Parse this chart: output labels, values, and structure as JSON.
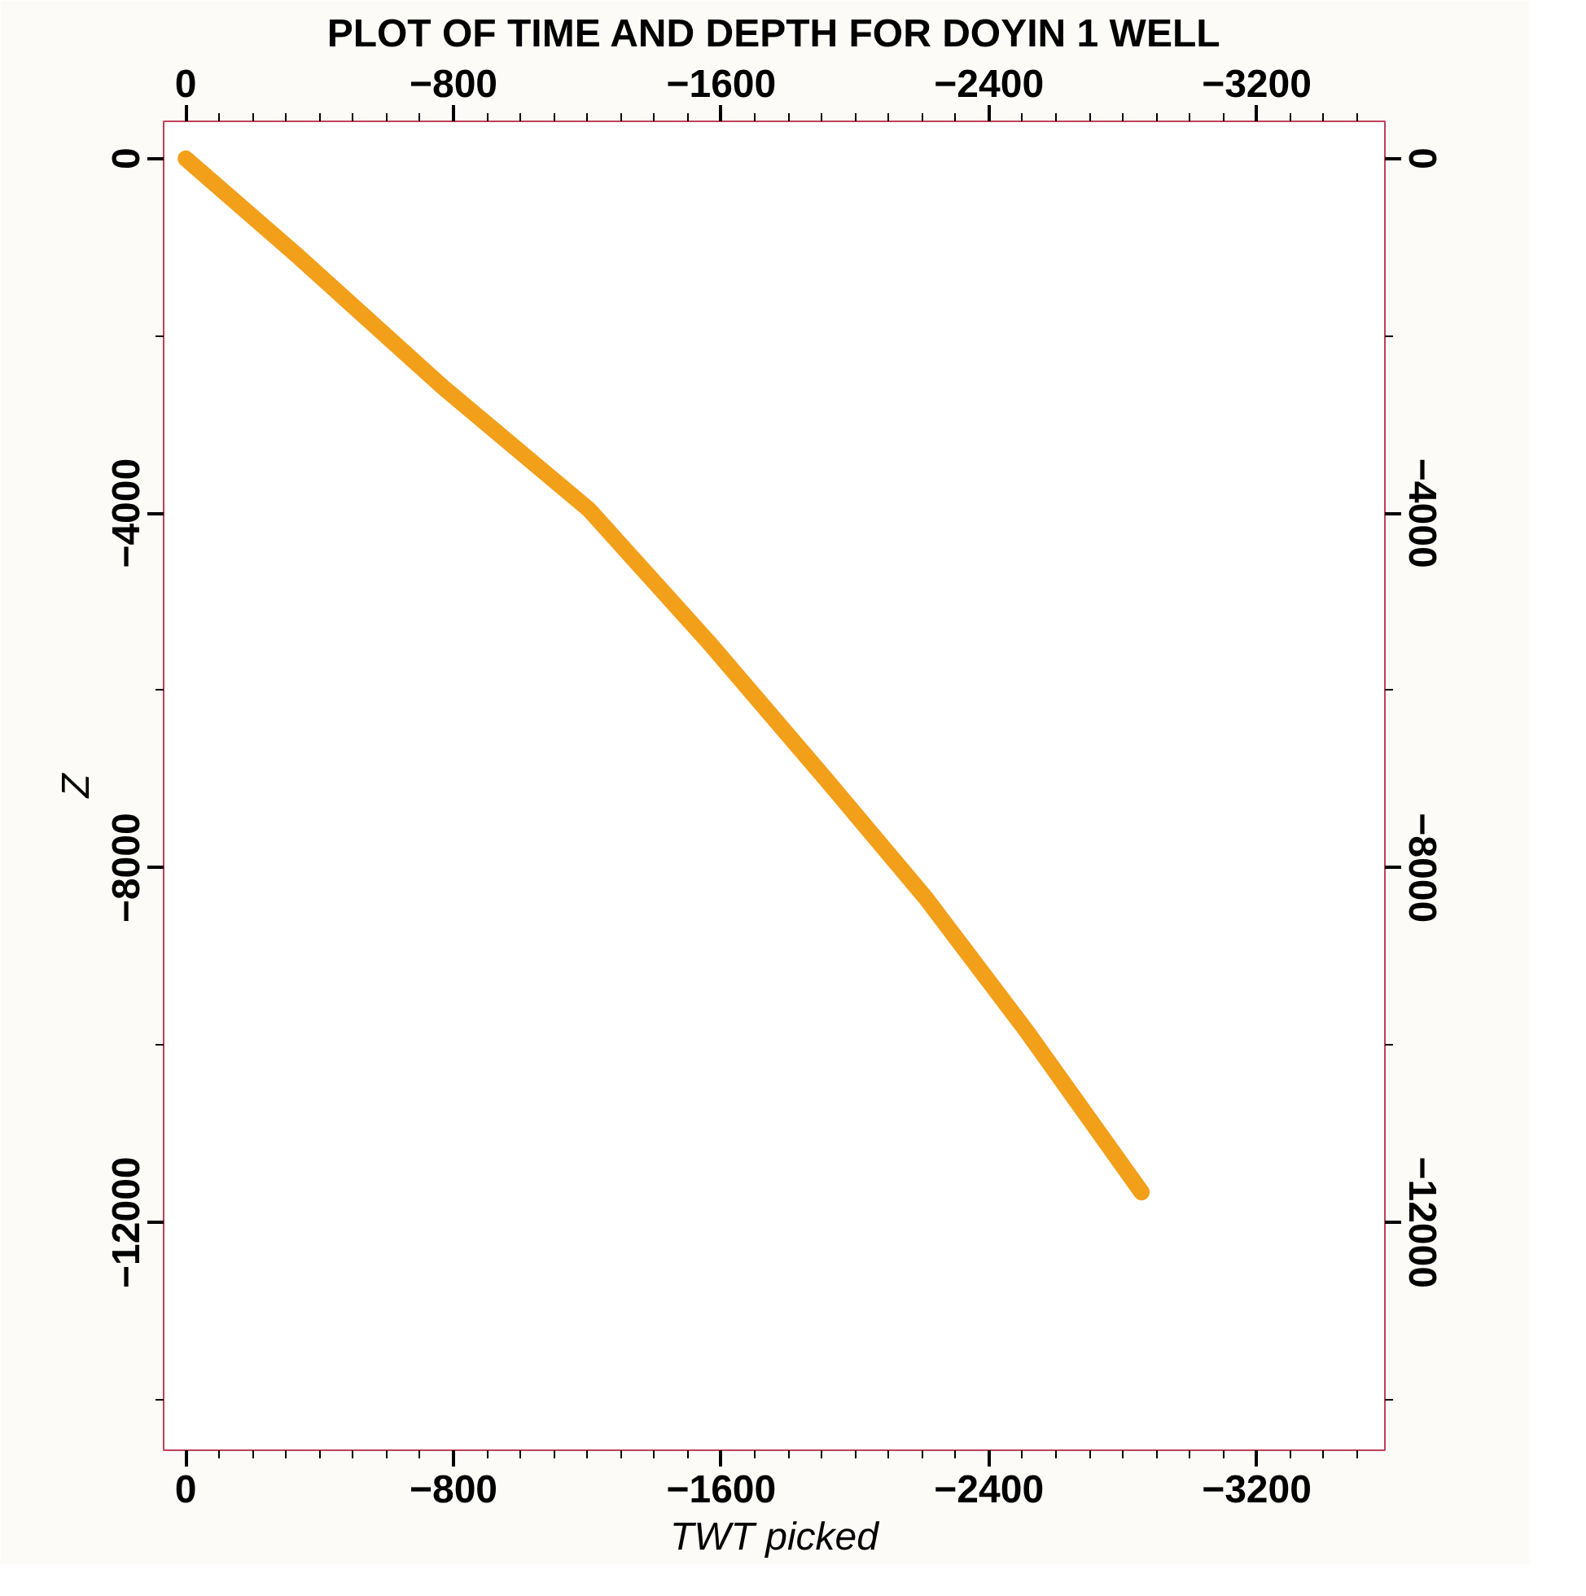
{
  "chart_data": {
    "type": "line",
    "title": "PLOT OF TIME AND DEPTH FOR DOYIN 1 WELL",
    "xlabel": "TWT picked",
    "ylabel": "Z",
    "series": [
      {
        "color": "#f29f1a",
        "x": [
          0,
          -332,
          -769,
          -1205,
          -1561,
          -1917,
          -2211,
          -2510,
          -2856
        ],
        "values": [
          0,
          -1090,
          -2580,
          -3960,
          -5450,
          -7020,
          -8340,
          -9830,
          -11660
        ]
      }
    ],
    "xlim": [
      66,
      -3583
    ],
    "ylim": [
      -14570,
      420
    ],
    "xticks": [
      0,
      -800,
      -1600,
      -2400,
      -3200
    ],
    "x2lim": [
      66,
      -3583
    ],
    "x2ticks": [
      0,
      -800,
      -1600,
      -2400,
      -3200
    ],
    "yticks": [
      0,
      -4000,
      -8000,
      -12000
    ],
    "y2lim": [
      -14570,
      420
    ],
    "y2ticks": [
      0,
      -4000,
      -8000,
      -12000
    ],
    "grid": false,
    "line_style": "solid"
  }
}
